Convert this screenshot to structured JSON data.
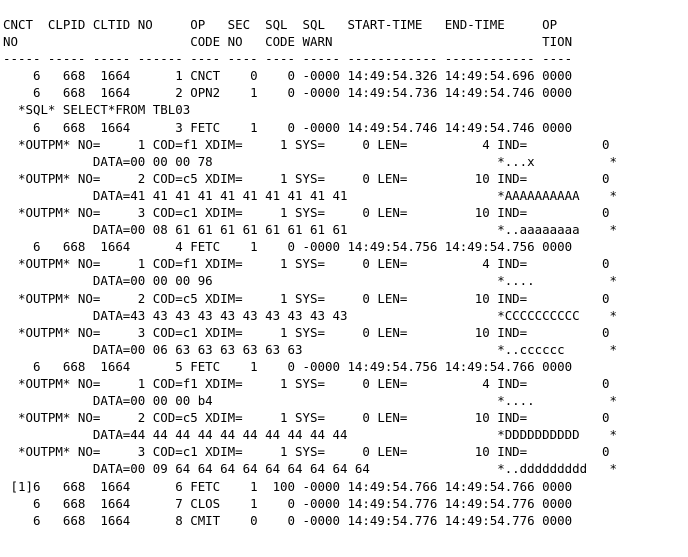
{
  "screen": {
    "background_color": "#ffffff",
    "text_color": "#000000",
    "lines": [
      "CNCT  CLPID CLTID NO     OP   SEC  SQL  SQL   START-TIME   END-TIME     OP",
      "NO                       CODE NO   CODE WARN                            TION",
      "----- ----- ----- ------ ---- ---- ---- ----- ------------ ------------ ----",
      "    6   668  1664      1 CNCT    0    0 -0000 14:49:54.326 14:49:54.696 0000",
      "    6   668  1664      2 OPN2    1    0 -0000 14:49:54.736 14:49:54.746 0000",
      "  *SQL* SELECT*FROM TBL03",
      "    6   668  1664      3 FETC    1    0 -0000 14:49:54.746 14:49:54.746 0000",
      "  *OUTPM* NO=     1 COD=f1 XDIM=     1 SYS=     0 LEN=          4 IND=          0",
      "            DATA=00 00 00 78                                      *...x          *",
      "  *OUTPM* NO=     2 COD=c5 XDIM=     1 SYS=     0 LEN=         10 IND=          0",
      "            DATA=41 41 41 41 41 41 41 41 41 41                    *AAAAAAAAAA    *",
      "  *OUTPM* NO=     3 COD=c1 XDIM=     1 SYS=     0 LEN=         10 IND=          0",
      "            DATA=00 08 61 61 61 61 61 61 61 61                    *..aaaaaaaa    *",
      "    6   668  1664      4 FETC    1    0 -0000 14:49:54.756 14:49:54.756 0000",
      "  *OUTPM* NO=     1 COD=f1 XDIM=     1 SYS=     0 LEN=          4 IND=          0",
      "            DATA=00 00 00 96                                      *....          *",
      "  *OUTPM* NO=     2 COD=c5 XDIM=     1 SYS=     0 LEN=         10 IND=          0",
      "            DATA=43 43 43 43 43 43 43 43 43 43                    *CCCCCCCCCC    *",
      "  *OUTPM* NO=     3 COD=c1 XDIM=     1 SYS=     0 LEN=         10 IND=          0",
      "            DATA=00 06 63 63 63 63 63 63                          *..cccccc      *",
      "    6   668  1664      5 FETC    1    0 -0000 14:49:54.756 14:49:54.766 0000",
      "  *OUTPM* NO=     1 COD=f1 XDIM=     1 SYS=     0 LEN=          4 IND=          0",
      "            DATA=00 00 00 b4                                      *....          *",
      "  *OUTPM* NO=     2 COD=c5 XDIM=     1 SYS=     0 LEN=         10 IND=          0",
      "            DATA=44 44 44 44 44 44 44 44 44 44                    *DDDDDDDDDD    *",
      "  *OUTPM* NO=     3 COD=c1 XDIM=     1 SYS=     0 LEN=         10 IND=          0",
      "            DATA=00 09 64 64 64 64 64 64 64 64 64                 *..ddddddddd   *",
      " [1]6   668  1664      6 FETC    1  100 -0000 14:49:54.766 14:49:54.766 0000",
      "    6   668  1664      7 CLOS    1    0 -0000 14:49:54.776 14:49:54.776 0000",
      "    6   668  1664      8 CMIT    0    0 -0000 14:49:54.776 14:49:54.776 0000"
    ]
  },
  "trace_table": {
    "column_headers": [
      "CNCT NO",
      "CLPID",
      "CLTID",
      "NO",
      "OP CODE",
      "SEC NO",
      "SQL CODE",
      "SQL WARN",
      "START-TIME",
      "END-TIME",
      "OP TION"
    ],
    "rows": [
      {
        "prefix": "",
        "cnct_no": "6",
        "clpid": "668",
        "cltid": "1664",
        "no": "1",
        "op_code": "CNCT",
        "sec_no": "0",
        "sql_code": "0",
        "sql_warn": "-0000",
        "start_time": "14:49:54.326",
        "end_time": "14:49:54.696",
        "op_tion": "0000"
      },
      {
        "prefix": "",
        "cnct_no": "6",
        "clpid": "668",
        "cltid": "1664",
        "no": "2",
        "op_code": "OPN2",
        "sec_no": "1",
        "sql_code": "0",
        "sql_warn": "-0000",
        "start_time": "14:49:54.736",
        "end_time": "14:49:54.746",
        "op_tion": "0000",
        "sql_text": "*SQL* SELECT*FROM TBL03"
      },
      {
        "prefix": "",
        "cnct_no": "6",
        "clpid": "668",
        "cltid": "1664",
        "no": "3",
        "op_code": "FETC",
        "sec_no": "1",
        "sql_code": "0",
        "sql_warn": "-0000",
        "start_time": "14:49:54.746",
        "end_time": "14:49:54.746",
        "op_tion": "0000",
        "outpm": [
          {
            "no": "1",
            "cod": "f1",
            "xdim": "1",
            "sys": "0",
            "len": "4",
            "ind": "0",
            "data": "00 00 00 78",
            "ascii": "*...x          *"
          },
          {
            "no": "2",
            "cod": "c5",
            "xdim": "1",
            "sys": "0",
            "len": "10",
            "ind": "0",
            "data": "41 41 41 41 41 41 41 41 41 41",
            "ascii": "*AAAAAAAAAA    *"
          },
          {
            "no": "3",
            "cod": "c1",
            "xdim": "1",
            "sys": "0",
            "len": "10",
            "ind": "0",
            "data": "00 08 61 61 61 61 61 61 61 61",
            "ascii": "*..aaaaaaaa    *"
          }
        ]
      },
      {
        "prefix": "",
        "cnct_no": "6",
        "clpid": "668",
        "cltid": "1664",
        "no": "4",
        "op_code": "FETC",
        "sec_no": "1",
        "sql_code": "0",
        "sql_warn": "-0000",
        "start_time": "14:49:54.756",
        "end_time": "14:49:54.756",
        "op_tion": "0000",
        "outpm": [
          {
            "no": "1",
            "cod": "f1",
            "xdim": "1",
            "sys": "0",
            "len": "4",
            "ind": "0",
            "data": "00 00 00 96",
            "ascii": "*....          *"
          },
          {
            "no": "2",
            "cod": "c5",
            "xdim": "1",
            "sys": "0",
            "len": "10",
            "ind": "0",
            "data": "43 43 43 43 43 43 43 43 43 43",
            "ascii": "*CCCCCCCCCC    *"
          },
          {
            "no": "3",
            "cod": "c1",
            "xdim": "1",
            "sys": "0",
            "len": "10",
            "ind": "0",
            "data": "00 06 63 63 63 63 63 63",
            "ascii": "*..cccccc      *"
          }
        ]
      },
      {
        "prefix": "",
        "cnct_no": "6",
        "clpid": "668",
        "cltid": "1664",
        "no": "5",
        "op_code": "FETC",
        "sec_no": "1",
        "sql_code": "0",
        "sql_warn": "-0000",
        "start_time": "14:49:54.756",
        "end_time": "14:49:54.766",
        "op_tion": "0000",
        "outpm": [
          {
            "no": "1",
            "cod": "f1",
            "xdim": "1",
            "sys": "0",
            "len": "4",
            "ind": "0",
            "data": "00 00 00 b4",
            "ascii": "*....          *"
          },
          {
            "no": "2",
            "cod": "c5",
            "xdim": "1",
            "sys": "0",
            "len": "10",
            "ind": "0",
            "data": "44 44 44 44 44 44 44 44 44 44",
            "ascii": "*DDDDDDDDDD    *"
          },
          {
            "no": "3",
            "cod": "c1",
            "xdim": "1",
            "sys": "0",
            "len": "10",
            "ind": "0",
            "data": "00 09 64 64 64 64 64 64 64 64 64",
            "ascii": "*..ddddddddd   *"
          }
        ]
      },
      {
        "prefix": "[1]",
        "cnct_no": "6",
        "clpid": "668",
        "cltid": "1664",
        "no": "6",
        "op_code": "FETC",
        "sec_no": "1",
        "sql_code": "100",
        "sql_warn": "-0000",
        "start_time": "14:49:54.766",
        "end_time": "14:49:54.766",
        "op_tion": "0000"
      },
      {
        "prefix": "",
        "cnct_no": "6",
        "clpid": "668",
        "cltid": "1664",
        "no": "7",
        "op_code": "CLOS",
        "sec_no": "1",
        "sql_code": "0",
        "sql_warn": "-0000",
        "start_time": "14:49:54.776",
        "end_time": "14:49:54.776",
        "op_tion": "0000"
      },
      {
        "prefix": "",
        "cnct_no": "6",
        "clpid": "668",
        "cltid": "1664",
        "no": "8",
        "op_code": "CMIT",
        "sec_no": "0",
        "sql_code": "0",
        "sql_warn": "-0000",
        "start_time": "14:49:54.776",
        "end_time": "14:49:54.776",
        "op_tion": "0000"
      }
    ]
  }
}
